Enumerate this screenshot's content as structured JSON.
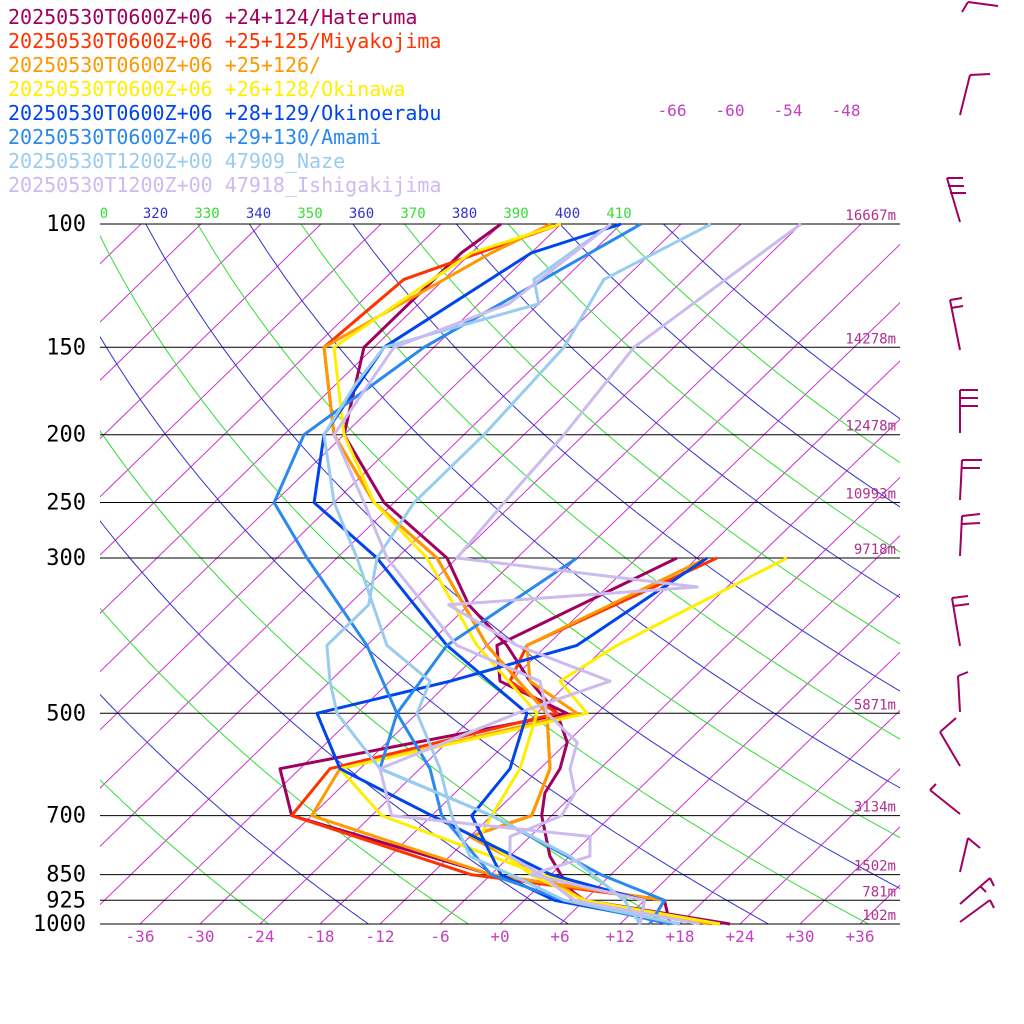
{
  "chart_data": {
    "type": "line",
    "title": "",
    "xlabel": "",
    "ylabel": "",
    "x_ticks": [
      "-36",
      "-30",
      "-24",
      "-18",
      "-12",
      "-6",
      "+0",
      "+6",
      "+12",
      "+18",
      "+24",
      "+30",
      "+36"
    ],
    "x_tick_values": [
      -36,
      -30,
      -24,
      -18,
      -12,
      -6,
      0,
      6,
      12,
      18,
      24,
      30,
      36
    ],
    "pressure_levels": [
      {
        "p": 100,
        "label": "100",
        "height": "16667m"
      },
      {
        "p": 150,
        "label": "150",
        "height": "14278m"
      },
      {
        "p": 200,
        "label": "200",
        "height": "12478m"
      },
      {
        "p": 250,
        "label": "250",
        "height": "10993m"
      },
      {
        "p": 300,
        "label": "300",
        "height": "9718m"
      },
      {
        "p": 500,
        "label": "500",
        "height": "5871m"
      },
      {
        "p": 700,
        "label": "700",
        "height": "3134m"
      },
      {
        "p": 850,
        "label": "850",
        "height": "1502m"
      },
      {
        "p": 925,
        "label": "925",
        "height": "781m"
      },
      {
        "p": 1000,
        "label": "1000",
        "height": "102m"
      }
    ],
    "theta_labels": [
      {
        "text": "0",
        "color": "#33dd33"
      },
      {
        "text": "320",
        "color": "#3333cc"
      },
      {
        "text": "330",
        "color": "#33dd33"
      },
      {
        "text": "340",
        "color": "#3333cc"
      },
      {
        "text": "350",
        "color": "#33dd33"
      },
      {
        "text": "360",
        "color": "#3333cc"
      },
      {
        "text": "370",
        "color": "#33dd33"
      },
      {
        "text": "380",
        "color": "#3333cc"
      },
      {
        "text": "390",
        "color": "#33dd33"
      },
      {
        "text": "400",
        "color": "#3333cc"
      },
      {
        "text": "410",
        "color": "#33dd33"
      }
    ],
    "isotherm_top_labels": [
      "-66",
      "-60",
      "-54",
      "-48"
    ],
    "series": [
      {
        "name": "20250530T0600Z+06 +24+124/Hateruma",
        "color": "#a0005f",
        "temp": [
          [
            100,
            -72
          ],
          [
            110,
            -73
          ],
          [
            150,
            -73
          ],
          [
            200,
            -66
          ],
          [
            250,
            -55
          ],
          [
            300,
            -43
          ],
          [
            350,
            -36
          ],
          [
            400,
            -28
          ],
          [
            450,
            -22
          ],
          [
            500,
            -16
          ],
          [
            550,
            -12
          ],
          [
            600,
            -10
          ],
          [
            650,
            -9
          ],
          [
            700,
            -7
          ],
          [
            800,
            -2
          ],
          [
            850,
            1
          ],
          [
            900,
            4
          ],
          [
            925,
            6
          ],
          [
            1000,
            23
          ]
        ],
        "dew": [
          [
            300,
            -20
          ],
          [
            400,
            -29
          ],
          [
            450,
            -25
          ],
          [
            500,
            -15
          ],
          [
            600,
            -38
          ],
          [
            700,
            -32
          ],
          [
            850,
            -6
          ],
          [
            925,
            14
          ],
          [
            1000,
            17
          ]
        ]
      },
      {
        "name": "20250530T0600Z+06 +25+125/Miyakojima",
        "color": "#ff3300",
        "temp": [
          [
            100,
            -66
          ],
          [
            120,
            -76
          ],
          [
            150,
            -77
          ],
          [
            200,
            -67
          ],
          [
            250,
            -56
          ],
          [
            300,
            -44
          ],
          [
            400,
            -30
          ],
          [
            500,
            -17
          ],
          [
            600,
            -11
          ],
          [
            700,
            -8
          ],
          [
            750,
            -12
          ],
          [
            850,
            -1
          ],
          [
            925,
            5
          ],
          [
            1000,
            22
          ]
        ],
        "dew": [
          [
            300,
            -16
          ],
          [
            400,
            -26
          ],
          [
            450,
            -24
          ],
          [
            500,
            -16
          ],
          [
            600,
            -33
          ],
          [
            700,
            -32
          ],
          [
            850,
            -8
          ],
          [
            925,
            14
          ],
          [
            1000,
            15
          ]
        ]
      },
      {
        "name": "20250530T0600Z+06 +25+126/",
        "color": "#ff9900",
        "temp": [
          [
            100,
            -67
          ],
          [
            110,
            -70
          ],
          [
            150,
            -77
          ],
          [
            200,
            -67
          ],
          [
            250,
            -56
          ],
          [
            300,
            -44
          ],
          [
            400,
            -30
          ],
          [
            500,
            -17
          ],
          [
            600,
            -11
          ],
          [
            700,
            -8
          ],
          [
            750,
            -12
          ],
          [
            850,
            -1
          ],
          [
            925,
            6
          ],
          [
            1000,
            21
          ]
        ],
        "dew": [
          [
            300,
            -17
          ],
          [
            400,
            -26
          ],
          [
            450,
            -22
          ],
          [
            500,
            -14
          ],
          [
            600,
            -32
          ],
          [
            700,
            -30
          ],
          [
            850,
            -6
          ],
          [
            925,
            14
          ],
          [
            1000,
            15
          ]
        ]
      },
      {
        "name": "20250530T0600Z+06 +26+128/Okinawa",
        "color": "#ffee00",
        "temp": [
          [
            100,
            -66
          ],
          [
            110,
            -72
          ],
          [
            150,
            -76
          ],
          [
            200,
            -66
          ],
          [
            250,
            -56
          ],
          [
            300,
            -45
          ],
          [
            400,
            -31
          ],
          [
            500,
            -18
          ],
          [
            600,
            -14
          ],
          [
            700,
            -12
          ],
          [
            750,
            -11
          ],
          [
            850,
            -2
          ],
          [
            925,
            6
          ],
          [
            1000,
            22
          ]
        ],
        "dew": [
          [
            300,
            -9
          ],
          [
            400,
            -17
          ],
          [
            450,
            -19
          ],
          [
            500,
            -13
          ],
          [
            600,
            -32
          ],
          [
            700,
            -23
          ],
          [
            850,
            -1
          ],
          [
            925,
            12
          ],
          [
            1000,
            14
          ]
        ]
      },
      {
        "name": "20250530T0600Z+06 +28+129/Okinoerabu",
        "color": "#0044ee",
        "temp": [
          [
            100,
            -60
          ],
          [
            110,
            -66
          ],
          [
            150,
            -71
          ],
          [
            200,
            -68
          ],
          [
            250,
            -62
          ],
          [
            300,
            -50
          ],
          [
            400,
            -34
          ],
          [
            500,
            -19
          ],
          [
            600,
            -15
          ],
          [
            700,
            -14
          ],
          [
            850,
            -5
          ],
          [
            925,
            3
          ],
          [
            1000,
            18
          ]
        ],
        "dew": [
          [
            300,
            -17
          ],
          [
            400,
            -21
          ],
          [
            450,
            -30
          ],
          [
            500,
            -40
          ],
          [
            600,
            -32
          ],
          [
            700,
            -18
          ],
          [
            850,
            0
          ],
          [
            925,
            12
          ],
          [
            1000,
            14
          ]
        ]
      },
      {
        "name": "20250530T0600Z+06 +29+130/Amami",
        "color": "#2b88ee",
        "temp": [
          [
            100,
            -58
          ],
          [
            150,
            -67
          ],
          [
            200,
            -70
          ],
          [
            250,
            -66
          ],
          [
            300,
            -57
          ],
          [
            400,
            -42
          ],
          [
            500,
            -32
          ],
          [
            600,
            -23
          ],
          [
            700,
            -17
          ],
          [
            850,
            -6
          ],
          [
            925,
            4
          ],
          [
            1000,
            17
          ]
        ],
        "dew": [
          [
            300,
            -30
          ],
          [
            400,
            -34
          ],
          [
            500,
            -32
          ],
          [
            600,
            -28
          ],
          [
            700,
            -12
          ],
          [
            850,
            5
          ],
          [
            925,
            14
          ],
          [
            1000,
            15
          ]
        ]
      },
      {
        "name": "20250530T1200Z+00 47909_Naze",
        "color": "#99ccee",
        "temp": [
          [
            100,
            -61
          ],
          [
            120,
            -63
          ],
          [
            130,
            -60
          ],
          [
            150,
            -71
          ],
          [
            170,
            -70
          ],
          [
            200,
            -68
          ],
          [
            250,
            -60
          ],
          [
            300,
            -52
          ],
          [
            400,
            -40
          ],
          [
            450,
            -32
          ],
          [
            500,
            -30
          ],
          [
            600,
            -22
          ],
          [
            700,
            -16
          ],
          [
            800,
            -10
          ],
          [
            850,
            -4
          ],
          [
            925,
            4
          ],
          [
            1000,
            18
          ]
        ],
        "dew": [
          [
            100,
            -51
          ],
          [
            120,
            -56
          ],
          [
            150,
            -53
          ],
          [
            200,
            -52
          ],
          [
            250,
            -52
          ],
          [
            300,
            -50
          ],
          [
            350,
            -46
          ],
          [
            400,
            -46
          ],
          [
            450,
            -42
          ],
          [
            500,
            -38
          ],
          [
            600,
            -28
          ],
          [
            700,
            -12
          ],
          [
            800,
            0
          ],
          [
            925,
            10
          ],
          [
            1000,
            14
          ]
        ]
      },
      {
        "name": "20250530T1200Z+00 47918_Ishigakijima",
        "color": "#ccbbee",
        "temp": [
          [
            100,
            -61
          ],
          [
            130,
            -63
          ],
          [
            150,
            -70
          ],
          [
            200,
            -67
          ],
          [
            250,
            -57
          ],
          [
            300,
            -49
          ],
          [
            400,
            -33
          ],
          [
            450,
            -21
          ],
          [
            500,
            -17
          ],
          [
            550,
            -11
          ],
          [
            600,
            -9
          ],
          [
            650,
            -6
          ],
          [
            700,
            -5
          ],
          [
            750,
            -8
          ],
          [
            800,
            -6
          ],
          [
            850,
            -1
          ],
          [
            925,
            5
          ],
          [
            1000,
            20
          ]
        ],
        "dew": [
          [
            100,
            -42
          ],
          [
            150,
            -46
          ],
          [
            200,
            -44
          ],
          [
            250,
            -43
          ],
          [
            300,
            -42
          ],
          [
            330,
            -15
          ],
          [
            350,
            -38
          ],
          [
            400,
            -27
          ],
          [
            450,
            -14
          ],
          [
            500,
            -20
          ],
          [
            600,
            -28
          ],
          [
            700,
            -22
          ],
          [
            750,
            0
          ],
          [
            800,
            2
          ],
          [
            850,
            -2
          ],
          [
            925,
            12
          ],
          [
            1000,
            14
          ]
        ]
      }
    ],
    "wind_barb_color": "#a0005f"
  }
}
